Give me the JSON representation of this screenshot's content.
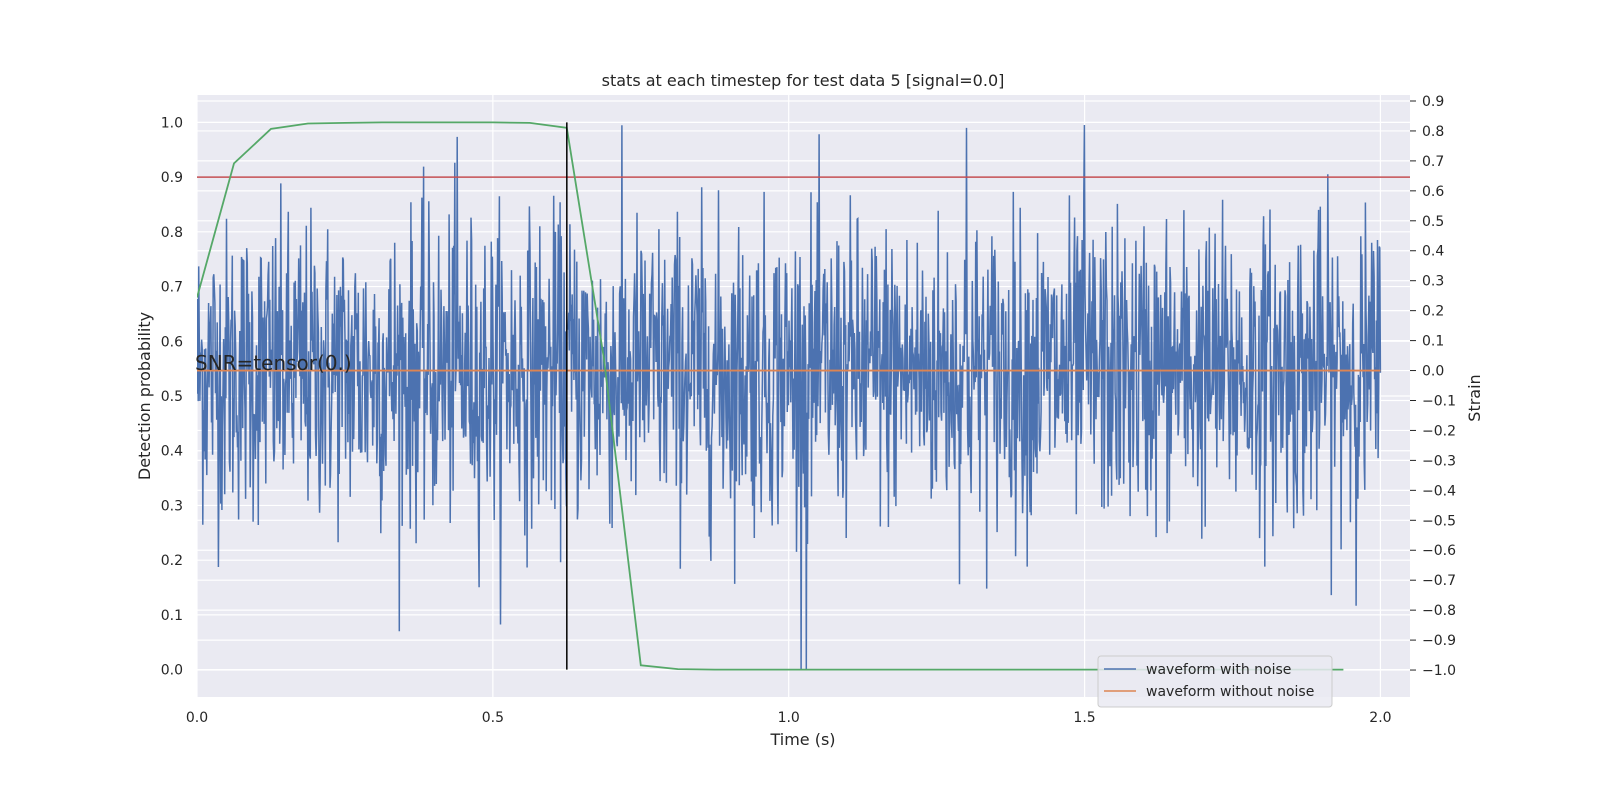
{
  "chart_data": {
    "type": "line",
    "title": "stats at each timestep for test data 5 [signal=0.0]",
    "xlabel": "Time (s)",
    "ylabel": "Detection probability",
    "y2label": "Strain",
    "xlim": [
      0.0,
      2.05
    ],
    "ylim": [
      -0.05,
      1.05
    ],
    "y2lim": [
      -1.09,
      0.92
    ],
    "x_ticks": [
      0.0,
      0.5,
      1.0,
      1.5,
      2.0
    ],
    "x_tick_labels": [
      "0.0",
      "0.5",
      "1.0",
      "1.5",
      "2.0"
    ],
    "y_ticks": [
      0.0,
      0.1,
      0.2,
      0.3,
      0.4,
      0.5,
      0.6,
      0.7,
      0.8,
      0.9,
      1.0
    ],
    "y_tick_labels": [
      "0.0",
      "0.1",
      "0.2",
      "0.3",
      "0.4",
      "0.5",
      "0.6",
      "0.7",
      "0.8",
      "0.9",
      "1.0"
    ],
    "y2_ticks": [
      -1.0,
      -0.9,
      -0.8,
      -0.7,
      -0.6,
      -0.5,
      -0.4,
      -0.3,
      -0.2,
      -0.1,
      0.0,
      0.1,
      0.2,
      0.3,
      0.4,
      0.5,
      0.6,
      0.7,
      0.8,
      0.9
    ],
    "y2_tick_labels": [
      "−1.0",
      "−0.9",
      "−0.8",
      "−0.7",
      "−0.6",
      "−0.5",
      "−0.4",
      "−0.3",
      "−0.2",
      "−0.1",
      "0.0",
      "0.1",
      "0.2",
      "0.3",
      "0.4",
      "0.5",
      "0.6",
      "0.7",
      "0.8",
      "0.9"
    ],
    "grid": true,
    "legend_position": "bottom-right",
    "annotation": "SNR=tensor(0.)",
    "colors": {
      "background": "#eaeaf2",
      "grid": "#ffffff",
      "noisy": "#4c72b0",
      "clean": "#dd8452",
      "probability": "#55a868",
      "threshold": "#c44e52",
      "marker": "#000000"
    },
    "series": [
      {
        "name": "waveform with noise",
        "axis": "right",
        "noise": {
          "x_range": [
            0.0,
            2.0
          ],
          "samples": 2048,
          "typical_min": -0.55,
          "typical_max": 0.55,
          "min": -1.0,
          "max": 0.82
        }
      },
      {
        "name": "waveform without noise",
        "axis": "right",
        "x": [
          0.0,
          2.0
        ],
        "y": [
          0.0,
          0.0
        ]
      },
      {
        "axis": "left",
        "x": [
          0.0,
          0.0625,
          0.125,
          0.1875,
          0.25,
          0.3125,
          0.375,
          0.4375,
          0.5,
          0.5625,
          0.625,
          0.6875,
          0.75,
          0.8125,
          0.875,
          0.9375,
          1.0,
          1.0625,
          1.125,
          1.1875,
          1.25,
          1.3125,
          1.375,
          1.4375,
          1.5,
          1.5625,
          1.625,
          1.6875,
          1.75,
          1.8125,
          1.875,
          1.9375
        ],
        "y": [
          0.68,
          0.925,
          0.988,
          0.998,
          0.999,
          1.0,
          1.0,
          1.0,
          1.0,
          0.999,
          0.99,
          0.57,
          0.008,
          0.001,
          0.0,
          0.0,
          0.0,
          0.0,
          0.0,
          0.0,
          0.0,
          0.0,
          0.0,
          0.0,
          0.0,
          0.0,
          0.0,
          0.0,
          0.0,
          0.0,
          0.0,
          0.0
        ]
      },
      {
        "axis": "left",
        "x": [
          0.0,
          2.05
        ],
        "y": [
          0.9,
          0.9
        ]
      },
      {
        "axis": "left",
        "x": [
          0.625,
          0.625
        ],
        "y": [
          0.0,
          1.0
        ]
      }
    ]
  }
}
